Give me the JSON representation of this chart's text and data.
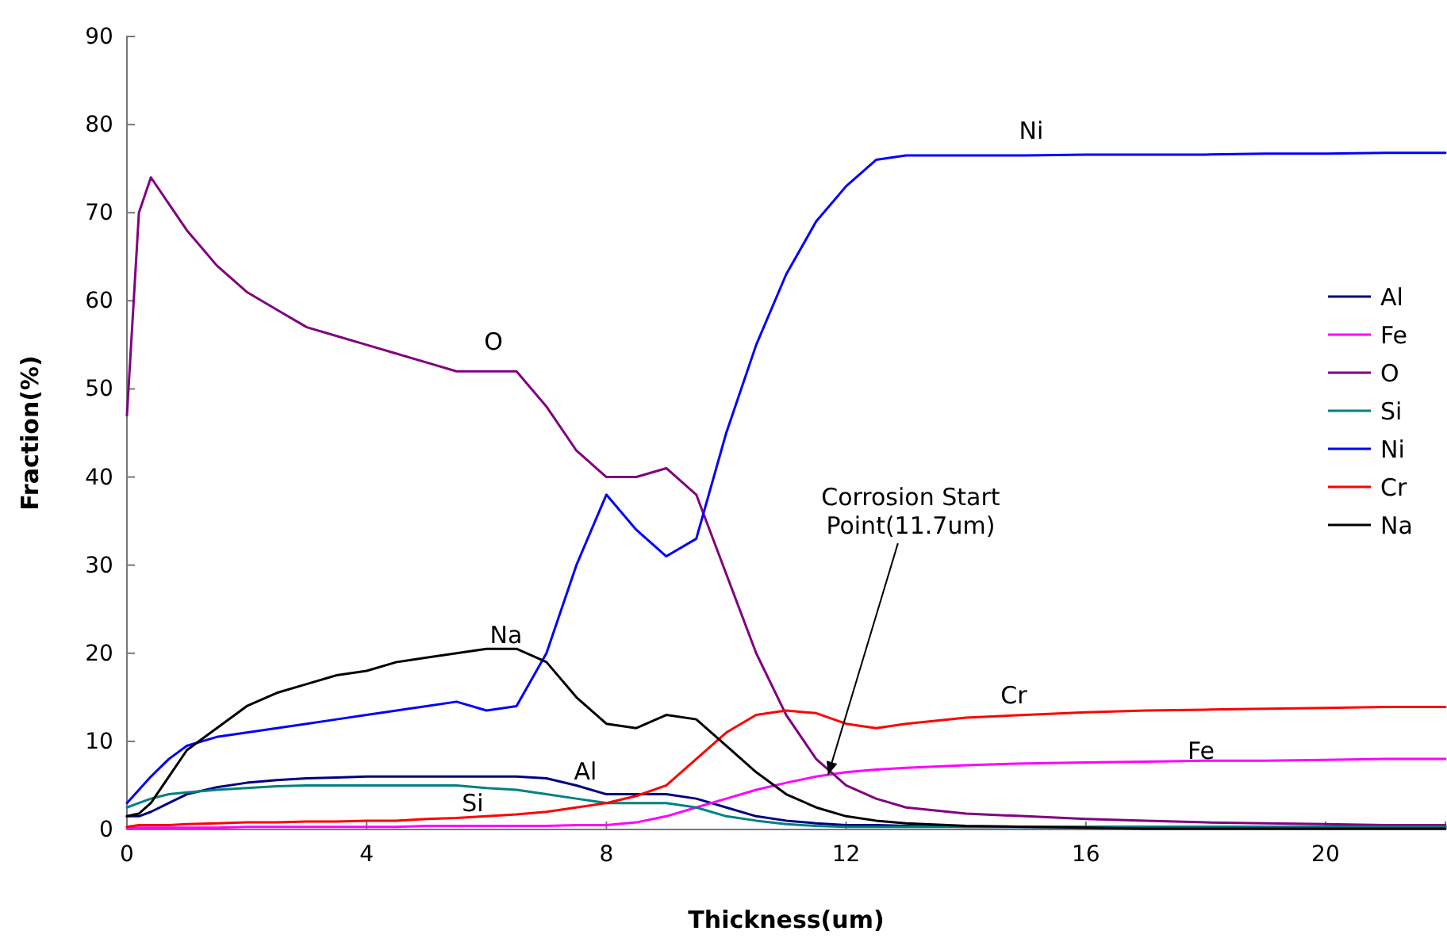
{
  "chart_data": {
    "type": "line",
    "xlabel": "Thickness(um)",
    "ylabel": "Fraction(%)",
    "xlim": [
      0,
      22
    ],
    "ylim": [
      0,
      90
    ],
    "xticks": [
      0,
      4,
      8,
      12,
      16,
      20
    ],
    "yticks": [
      0,
      10,
      20,
      30,
      40,
      50,
      60,
      70,
      80,
      90
    ],
    "legend": "right",
    "marker": "none",
    "line_style": "solid",
    "x": [
      0,
      0.2,
      0.4,
      0.7,
      1,
      1.5,
      2,
      2.5,
      3,
      3.5,
      4,
      4.5,
      5,
      5.5,
      6,
      6.5,
      7,
      7.5,
      8,
      8.5,
      9,
      9.5,
      10,
      10.5,
      11,
      11.5,
      12,
      12.5,
      13,
      14,
      15,
      16,
      17,
      18,
      19,
      20,
      21,
      22
    ],
    "series": [
      {
        "name": "Al",
        "color": "#000080",
        "values": [
          1.5,
          1.5,
          2,
          3,
          4,
          4.8,
          5.3,
          5.6,
          5.8,
          5.9,
          6,
          6,
          6,
          6,
          6,
          6,
          5.8,
          5,
          4,
          4,
          4,
          3.5,
          2.5,
          1.5,
          1,
          0.7,
          0.5,
          0.5,
          0.4,
          0.3,
          0.3,
          0.3,
          0.3,
          0.3,
          0.3,
          0.3,
          0.3,
          0.3
        ]
      },
      {
        "name": "Fe",
        "color": "#ff00ff",
        "values": [
          0.2,
          0.2,
          0.2,
          0.2,
          0.2,
          0.2,
          0.3,
          0.3,
          0.3,
          0.3,
          0.3,
          0.3,
          0.4,
          0.4,
          0.4,
          0.4,
          0.4,
          0.5,
          0.5,
          0.8,
          1.5,
          2.5,
          3.5,
          4.5,
          5.3,
          6,
          6.5,
          6.8,
          7,
          7.3,
          7.5,
          7.6,
          7.7,
          7.8,
          7.8,
          7.9,
          8,
          8
        ]
      },
      {
        "name": "O",
        "color": "#800080",
        "values": [
          47,
          70,
          74,
          71,
          68,
          64,
          61,
          59,
          57,
          56,
          55,
          54,
          53,
          52,
          52,
          52,
          48,
          43,
          40,
          40,
          41,
          38,
          29,
          20,
          13,
          8,
          5,
          3.5,
          2.5,
          1.8,
          1.5,
          1.2,
          1,
          0.8,
          0.7,
          0.6,
          0.5,
          0.5
        ]
      },
      {
        "name": "Si",
        "color": "#008080",
        "values": [
          2.5,
          3,
          3.5,
          4,
          4.2,
          4.5,
          4.7,
          4.9,
          5,
          5,
          5,
          5,
          5,
          5,
          4.7,
          4.5,
          4,
          3.5,
          3,
          3,
          3,
          2.5,
          1.5,
          1,
          0.6,
          0.4,
          0.3,
          0.3,
          0.3,
          0.3,
          0.3,
          0.3,
          0.3,
          0.3,
          0.3,
          0.3,
          0.3,
          0.3
        ]
      },
      {
        "name": "Ni",
        "color": "#0000ff",
        "values": [
          3,
          4.5,
          6,
          8,
          9.5,
          10.5,
          11,
          11.5,
          12,
          12.5,
          13,
          13.5,
          14,
          14.5,
          13.5,
          14,
          20,
          30,
          38,
          34,
          31,
          33,
          45,
          55,
          63,
          69,
          73,
          76,
          76.5,
          76.5,
          76.5,
          76.6,
          76.6,
          76.6,
          76.7,
          76.7,
          76.8,
          76.8
        ]
      },
      {
        "name": "Cr",
        "color": "#ff0000",
        "values": [
          0.3,
          0.5,
          0.5,
          0.5,
          0.6,
          0.7,
          0.8,
          0.8,
          0.9,
          0.9,
          1,
          1,
          1.2,
          1.3,
          1.5,
          1.7,
          2,
          2.5,
          3,
          3.8,
          5,
          8,
          11,
          13,
          13.5,
          13.2,
          12,
          11.5,
          12,
          12.7,
          13,
          13.3,
          13.5,
          13.6,
          13.7,
          13.8,
          13.9,
          13.9
        ]
      },
      {
        "name": "Na",
        "color": "#000000",
        "values": [
          1.5,
          1.8,
          3,
          6,
          9,
          11.5,
          14,
          15.5,
          16.5,
          17.5,
          18,
          19,
          19.5,
          20,
          20.5,
          20.5,
          19,
          15,
          12,
          11.5,
          13,
          12.5,
          9.5,
          6.5,
          4,
          2.5,
          1.5,
          1,
          0.7,
          0.4,
          0.3,
          0.2,
          0.1,
          0.1,
          0.1,
          0.1,
          0.1,
          0.1
        ]
      }
    ],
    "annotations": [
      {
        "text": "Corrosion Start\nPoint(11.7um)",
        "x": 11.7,
        "y": 6.2
      }
    ]
  }
}
